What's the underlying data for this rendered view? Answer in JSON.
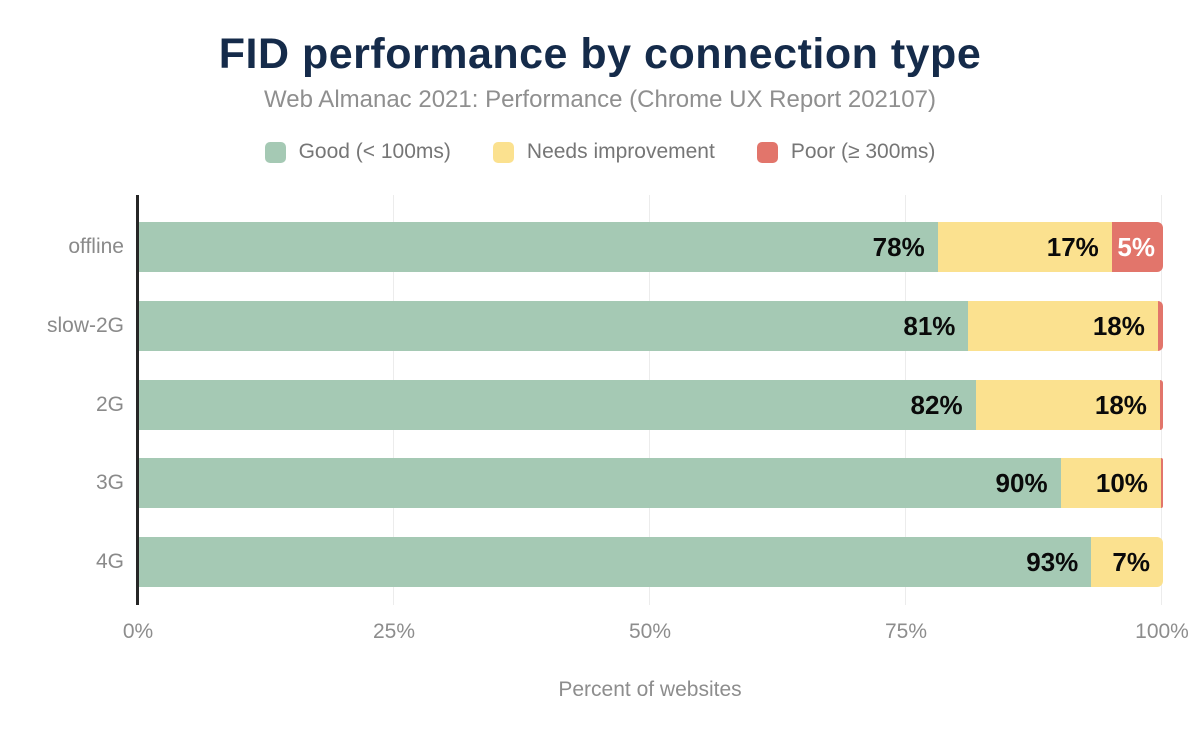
{
  "header": {
    "title": "FID performance by connection type",
    "subtitle": "Web Almanac 2021: Performance (Chrome UX Report 202107)"
  },
  "colors": {
    "good": "#a5c9b4",
    "needs_improvement": "#fbe18f",
    "poor": "#e2756b",
    "title_text": "#152b4a",
    "muted_text": "#8d8d8d",
    "value_label": "#0a0a0a",
    "value_label_on_poor": "#ffffff",
    "axis_line": "#262626",
    "grid_line": "#ececec"
  },
  "chart_data": {
    "type": "bar",
    "orientation": "horizontal",
    "stacked": true,
    "title": "FID performance by connection type",
    "subtitle": "Web Almanac 2021: Performance (Chrome UX Report 202107)",
    "xlabel": "Percent of websites",
    "xlim": [
      0,
      100
    ],
    "x_ticks": [
      {
        "label": "0%",
        "pct": 0
      },
      {
        "label": "25%",
        "pct": 25
      },
      {
        "label": "50%",
        "pct": 50
      },
      {
        "label": "75%",
        "pct": 75
      },
      {
        "label": "100%",
        "pct": 100
      }
    ],
    "grid": true,
    "legend_position": "top",
    "categories": [
      "offline",
      "slow-2G",
      "2G",
      "3G",
      "4G"
    ],
    "series": [
      {
        "name": "Good (< 100ms)",
        "color": "#a5c9b4",
        "values": [
          78,
          81,
          82,
          90,
          93
        ]
      },
      {
        "name": "Needs improvement",
        "color": "#fbe18f",
        "values": [
          17,
          18,
          18,
          10,
          7
        ]
      },
      {
        "name": "Poor (≥ 300ms)",
        "color": "#e2756b",
        "values": [
          5,
          1,
          0.3,
          0.2,
          0
        ]
      }
    ],
    "rows": [
      {
        "category": "offline",
        "segments": [
          {
            "series": "good",
            "width_pct": 78,
            "label": "78%",
            "label_on_poor": false
          },
          {
            "series": "needs_improvement",
            "width_pct": 17,
            "label": "17%",
            "label_on_poor": false
          },
          {
            "series": "poor",
            "width_pct": 5,
            "label": "5%",
            "label_on_poor": true
          }
        ]
      },
      {
        "category": "slow-2G",
        "segments": [
          {
            "series": "good",
            "width_pct": 81,
            "label": "81%",
            "label_on_poor": false
          },
          {
            "series": "needs_improvement",
            "width_pct": 18.5,
            "label": "18%",
            "label_on_poor": false
          },
          {
            "series": "poor",
            "width_pct": 0.5,
            "label": "",
            "label_on_poor": true
          }
        ]
      },
      {
        "category": "2G",
        "segments": [
          {
            "series": "good",
            "width_pct": 81.7,
            "label": "82%",
            "label_on_poor": false
          },
          {
            "series": "needs_improvement",
            "width_pct": 18,
            "label": "18%",
            "label_on_poor": false
          },
          {
            "series": "poor",
            "width_pct": 0.3,
            "label": "",
            "label_on_poor": true
          }
        ]
      },
      {
        "category": "3G",
        "segments": [
          {
            "series": "good",
            "width_pct": 90,
            "label": "90%",
            "label_on_poor": false
          },
          {
            "series": "needs_improvement",
            "width_pct": 9.8,
            "label": "10%",
            "label_on_poor": false
          },
          {
            "series": "poor",
            "width_pct": 0.2,
            "label": "",
            "label_on_poor": true
          }
        ]
      },
      {
        "category": "4G",
        "segments": [
          {
            "series": "good",
            "width_pct": 93,
            "label": "93%",
            "label_on_poor": false
          },
          {
            "series": "needs_improvement",
            "width_pct": 7,
            "label": "7%",
            "label_on_poor": false
          },
          {
            "series": "poor",
            "width_pct": 0,
            "label": "",
            "label_on_poor": true
          }
        ]
      }
    ]
  }
}
